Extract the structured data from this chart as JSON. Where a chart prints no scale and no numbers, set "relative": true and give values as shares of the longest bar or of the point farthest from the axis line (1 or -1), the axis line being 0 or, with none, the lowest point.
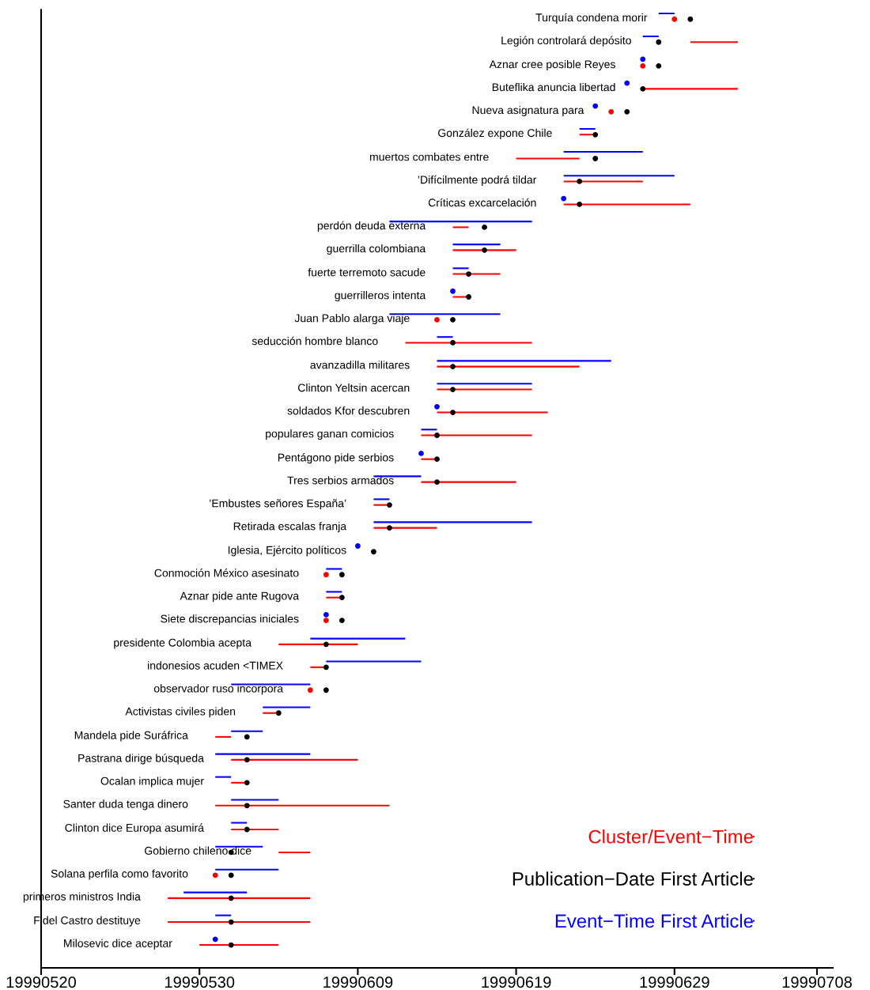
{
  "chart_data": {
    "type": "scatter",
    "relative": true,
    "xlim": [
      "1999-05-20",
      "1999-07-09"
    ],
    "xticks": [
      {
        "value": "1999-05-20",
        "label": "19990520"
      },
      {
        "value": "1999-05-30",
        "label": "19990530"
      },
      {
        "value": "1999-06-09",
        "label": "19990609"
      },
      {
        "value": "1999-06-19",
        "label": "19990619"
      },
      {
        "value": "1999-06-29",
        "label": "19990629"
      },
      {
        "value": "1999-07-08",
        "label": "19990708"
      }
    ],
    "legend": "bottom right",
    "line_style": "solid",
    "series": [
      {
        "name": "Cluster/Event−Time",
        "type": "line",
        "color": "#ff0000",
        "x": [
          "1999-06-30",
          "1999-07-03"
        ],
        "values": [
          0.97,
          0.97
        ]
      },
      {
        "name": "Publication−Date First Article",
        "color": "#000000",
        "marker": "circle",
        "x": [
          "1999-06-30",
          "1999-06-28",
          "1999-06-28",
          "1999-06-27",
          "1999-06-26",
          "1999-06-24",
          "1999-06-24",
          "1999-06-23",
          "1999-06-23",
          "1999-06-17",
          "1999-06-17",
          "1999-06-16",
          "1999-06-16",
          "1999-06-15",
          "1999-06-15",
          "1999-06-15",
          "1999-06-15",
          "1999-06-15",
          "1999-06-14",
          "1999-06-14",
          "1999-06-14",
          "1999-06-11",
          "1999-06-11",
          "1999-06-10",
          "1999-06-08",
          "1999-06-08",
          "1999-06-08",
          "1999-06-07",
          "1999-06-07",
          "1999-06-07",
          "1999-06-04",
          "1999-06-02",
          "1999-06-02",
          "1999-06-02",
          "1999-06-02",
          "1999-06-02",
          "1999-06-01",
          "1999-06-01",
          "1999-06-01",
          "1999-06-01",
          "1999-06-01"
        ],
        "values": [
          0.994,
          0.97,
          0.945,
          0.921,
          0.897,
          0.873,
          0.848,
          0.824,
          0.8,
          0.776,
          0.752,
          0.727,
          0.703,
          0.679,
          0.655,
          0.63,
          0.606,
          0.582,
          0.558,
          0.533,
          0.509,
          0.485,
          0.461,
          0.436,
          0.412,
          0.388,
          0.364,
          0.339,
          0.315,
          0.291,
          0.267,
          0.242,
          0.218,
          0.194,
          0.17,
          0.145,
          0.121,
          0.097,
          0.073,
          0.048,
          0.024
        ]
      },
      {
        "name": "Event−Time First Article",
        "type": "line",
        "color": "#0000ff",
        "x": [
          "1999-06-28",
          "1999-06-29"
        ],
        "values": [
          1,
          1
        ]
      },
      {
        "type": "line",
        "color": "#ff0000",
        "x": [
          "1999-06-27",
          "1999-07-03"
        ],
        "values": [
          0.921,
          0.921
        ]
      },
      {
        "type": "line",
        "color": "#ff0000",
        "x": [
          "1999-06-23",
          "1999-06-24"
        ],
        "values": [
          0.873,
          0.873
        ]
      },
      {
        "type": "line",
        "color": "#ff0000",
        "x": [
          "1999-06-19",
          "1999-06-23"
        ],
        "values": [
          0.848,
          0.848
        ]
      },
      {
        "type": "line",
        "color": "#ff0000",
        "x": [
          "1999-06-22",
          "1999-06-27"
        ],
        "values": [
          0.824,
          0.824
        ]
      },
      {
        "type": "line",
        "color": "#ff0000",
        "x": [
          "1999-06-22",
          "1999-06-30"
        ],
        "values": [
          0.8,
          0.8
        ]
      },
      {
        "type": "line",
        "color": "#ff0000",
        "x": [
          "1999-06-15",
          "1999-06-16"
        ],
        "values": [
          0.776,
          0.776
        ]
      },
      {
        "type": "line",
        "color": "#ff0000",
        "x": [
          "1999-06-15",
          "1999-06-19"
        ],
        "values": [
          0.752,
          0.752
        ]
      },
      {
        "type": "line",
        "color": "#ff0000",
        "x": [
          "1999-06-15",
          "1999-06-18"
        ],
        "values": [
          0.727,
          0.727
        ]
      },
      {
        "type": "line",
        "color": "#ff0000",
        "x": [
          "1999-06-15",
          "1999-06-16"
        ],
        "values": [
          0.703,
          0.703
        ]
      },
      {
        "type": "line",
        "color": "#ff0000",
        "x": [
          "1999-06-12",
          "1999-06-20"
        ],
        "values": [
          0.655,
          0.655
        ]
      },
      {
        "type": "line",
        "color": "#ff0000",
        "x": [
          "1999-06-14",
          "1999-06-23"
        ],
        "values": [
          0.63,
          0.63
        ]
      },
      {
        "type": "line",
        "color": "#ff0000",
        "x": [
          "1999-06-14",
          "1999-06-20"
        ],
        "values": [
          0.606,
          0.606
        ]
      },
      {
        "type": "line",
        "color": "#ff0000",
        "x": [
          "1999-06-14",
          "1999-06-21"
        ],
        "values": [
          0.582,
          0.582
        ]
      },
      {
        "type": "line",
        "color": "#ff0000",
        "x": [
          "1999-06-13",
          "1999-06-20"
        ],
        "values": [
          0.558,
          0.558
        ]
      },
      {
        "type": "line",
        "color": "#ff0000",
        "x": [
          "1999-06-13",
          "1999-06-14"
        ],
        "values": [
          0.533,
          0.533
        ]
      },
      {
        "type": "line",
        "color": "#ff0000",
        "x": [
          "1999-06-13",
          "1999-06-19"
        ],
        "values": [
          0.509,
          0.509
        ]
      },
      {
        "type": "line",
        "color": "#ff0000",
        "x": [
          "1999-06-10",
          "1999-06-11"
        ],
        "values": [
          0.485,
          0.485
        ]
      },
      {
        "type": "line",
        "color": "#ff0000",
        "x": [
          "1999-06-10",
          "1999-06-14"
        ],
        "values": [
          0.461,
          0.461
        ]
      },
      {
        "type": "line",
        "color": "#ff0000",
        "x": [
          "1999-06-07",
          "1999-06-08"
        ],
        "values": [
          0.388,
          0.388
        ]
      },
      {
        "type": "line",
        "color": "#ff0000",
        "x": [
          "1999-06-04",
          "1999-06-09"
        ],
        "values": [
          0.339,
          0.339
        ]
      },
      {
        "type": "line",
        "color": "#ff0000",
        "x": [
          "1999-06-06",
          "1999-06-07"
        ],
        "values": [
          0.315,
          0.315
        ]
      },
      {
        "type": "line",
        "color": "#ff0000",
        "x": [
          "1999-06-03",
          "1999-06-04"
        ],
        "values": [
          0.267,
          0.267
        ]
      },
      {
        "type": "line",
        "color": "#ff0000",
        "x": [
          "1999-05-31",
          "1999-06-01"
        ],
        "values": [
          0.242,
          0.242
        ]
      },
      {
        "type": "line",
        "color": "#ff0000",
        "x": [
          "1999-06-01",
          "1999-06-09"
        ],
        "values": [
          0.218,
          0.218
        ]
      },
      {
        "type": "line",
        "color": "#ff0000",
        "x": [
          "1999-06-01",
          "1999-06-02"
        ],
        "values": [
          0.194,
          0.194
        ]
      },
      {
        "type": "line",
        "color": "#ff0000",
        "x": [
          "1999-05-31",
          "1999-06-11"
        ],
        "values": [
          0.17,
          0.17
        ]
      },
      {
        "type": "line",
        "color": "#ff0000",
        "x": [
          "1999-06-01",
          "1999-06-04"
        ],
        "values": [
          0.145,
          0.145
        ]
      },
      {
        "type": "line",
        "color": "#ff0000",
        "x": [
          "1999-06-04",
          "1999-06-06"
        ],
        "values": [
          0.121,
          0.121
        ]
      },
      {
        "type": "line",
        "color": "#ff0000",
        "x": [
          "1999-05-28",
          "1999-06-06"
        ],
        "values": [
          0.073,
          0.073
        ]
      },
      {
        "type": "line",
        "color": "#ff0000",
        "x": [
          "1999-05-28",
          "1999-06-06"
        ],
        "values": [
          0.048,
          0.048
        ]
      },
      {
        "type": "line",
        "color": "#ff0000",
        "x": [
          "1999-05-30",
          "1999-06-04"
        ],
        "values": [
          0.024,
          0.024
        ]
      },
      {
        "type": "line",
        "color": "#0000ff",
        "x": [
          "1999-06-27",
          "1999-06-28"
        ],
        "values": [
          0.976,
          0.976
        ]
      },
      {
        "type": "line",
        "color": "#0000ff",
        "x": [
          "1999-06-23",
          "1999-06-24"
        ],
        "values": [
          0.879,
          0.879
        ]
      },
      {
        "type": "line",
        "color": "#0000ff",
        "x": [
          "1999-06-22",
          "1999-06-27"
        ],
        "values": [
          0.855,
          0.855
        ]
      },
      {
        "type": "line",
        "color": "#0000ff",
        "x": [
          "1999-06-22",
          "1999-06-29"
        ],
        "values": [
          0.83,
          0.83
        ]
      },
      {
        "type": "line",
        "color": "#0000ff",
        "x": [
          "1999-06-11",
          "1999-06-20"
        ],
        "values": [
          0.782,
          0.782
        ]
      },
      {
        "type": "line",
        "color": "#0000ff",
        "x": [
          "1999-06-15",
          "1999-06-18"
        ],
        "values": [
          0.758,
          0.758
        ]
      },
      {
        "type": "line",
        "color": "#0000ff",
        "x": [
          "1999-06-15",
          "1999-06-16"
        ],
        "values": [
          0.733,
          0.733
        ]
      },
      {
        "type": "line",
        "color": "#0000ff",
        "x": [
          "1999-06-11",
          "1999-06-18"
        ],
        "values": [
          0.685,
          0.685
        ]
      },
      {
        "type": "line",
        "color": "#0000ff",
        "x": [
          "1999-06-14",
          "1999-06-15"
        ],
        "values": [
          0.661,
          0.661
        ]
      },
      {
        "type": "line",
        "color": "#0000ff",
        "x": [
          "1999-06-14",
          "1999-06-25"
        ],
        "values": [
          0.636,
          0.636
        ]
      },
      {
        "type": "line",
        "color": "#0000ff",
        "x": [
          "1999-06-14",
          "1999-06-20"
        ],
        "values": [
          0.612,
          0.612
        ]
      },
      {
        "type": "line",
        "color": "#0000ff",
        "x": [
          "1999-06-13",
          "1999-06-14"
        ],
        "values": [
          0.564,
          0.564
        ]
      },
      {
        "type": "line",
        "color": "#0000ff",
        "x": [
          "1999-06-10",
          "1999-06-13"
        ],
        "values": [
          0.515,
          0.515
        ]
      },
      {
        "type": "line",
        "color": "#0000ff",
        "x": [
          "1999-06-10",
          "1999-06-11"
        ],
        "values": [
          0.491,
          0.491
        ]
      },
      {
        "type": "line",
        "color": "#0000ff",
        "x": [
          "1999-06-10",
          "1999-06-20"
        ],
        "values": [
          0.467,
          0.467
        ]
      },
      {
        "type": "line",
        "color": "#0000ff",
        "x": [
          "1999-06-07",
          "1999-06-08"
        ],
        "values": [
          0.418,
          0.418
        ]
      },
      {
        "type": "line",
        "color": "#0000ff",
        "x": [
          "1999-06-07",
          "1999-06-08"
        ],
        "values": [
          0.394,
          0.394
        ]
      },
      {
        "type": "line",
        "color": "#0000ff",
        "x": [
          "1999-06-06",
          "1999-06-12"
        ],
        "values": [
          0.345,
          0.345
        ]
      },
      {
        "type": "line",
        "color": "#0000ff",
        "x": [
          "1999-06-07",
          "1999-06-13"
        ],
        "values": [
          0.321,
          0.321
        ]
      },
      {
        "type": "line",
        "color": "#0000ff",
        "x": [
          "1999-06-01",
          "1999-06-06"
        ],
        "values": [
          0.297,
          0.297
        ]
      },
      {
        "type": "line",
        "color": "#0000ff",
        "x": [
          "1999-06-03",
          "1999-06-06"
        ],
        "values": [
          0.273,
          0.273
        ]
      },
      {
        "type": "line",
        "color": "#0000ff",
        "x": [
          "1999-06-01",
          "1999-06-03"
        ],
        "values": [
          0.248,
          0.248
        ]
      },
      {
        "type": "line",
        "color": "#0000ff",
        "x": [
          "1999-05-31",
          "1999-06-06"
        ],
        "values": [
          0.224,
          0.224
        ]
      },
      {
        "type": "line",
        "color": "#0000ff",
        "x": [
          "1999-05-31",
          "1999-06-01"
        ],
        "values": [
          0.2,
          0.2
        ]
      },
      {
        "type": "line",
        "color": "#0000ff",
        "x": [
          "1999-06-01",
          "1999-06-04"
        ],
        "values": [
          0.176,
          0.176
        ]
      },
      {
        "type": "line",
        "color": "#0000ff",
        "x": [
          "1999-06-01",
          "1999-06-02"
        ],
        "values": [
          0.152,
          0.152
        ]
      },
      {
        "type": "line",
        "color": "#0000ff",
        "x": [
          "1999-05-31",
          "1999-06-03"
        ],
        "values": [
          0.127,
          0.127
        ]
      },
      {
        "type": "line",
        "color": "#0000ff",
        "x": [
          "1999-05-31",
          "1999-06-04"
        ],
        "values": [
          0.103,
          0.103
        ]
      },
      {
        "type": "line",
        "color": "#0000ff",
        "x": [
          "1999-05-29",
          "1999-06-02"
        ],
        "values": [
          0.079,
          0.079
        ]
      },
      {
        "type": "line",
        "color": "#0000ff",
        "x": [
          "1999-05-31",
          "1999-06-01"
        ],
        "values": [
          0.055,
          0.055
        ]
      },
      {
        "color": "#ff0000",
        "marker": "circle",
        "x": [
          "1999-06-29",
          "1999-06-27",
          "1999-06-25",
          "1999-06-14",
          "1999-06-07",
          "1999-06-07",
          "1999-06-06",
          "1999-05-31"
        ],
        "values": [
          0.994,
          0.945,
          0.897,
          0.679,
          0.412,
          0.364,
          0.291,
          0.097
        ]
      },
      {
        "color": "#0000ff",
        "marker": "circle",
        "x": [
          "1999-06-27",
          "1999-06-26",
          "1999-06-24",
          "1999-06-22",
          "1999-06-15",
          "1999-06-14",
          "1999-06-13",
          "1999-06-09",
          "1999-06-07",
          "1999-05-31"
        ],
        "values": [
          0.952,
          0.927,
          0.903,
          0.806,
          0.709,
          0.588,
          0.539,
          0.442,
          0.37,
          0.03
        ]
      }
    ],
    "annotations": [
      {
        "text": "Turquía condena morir",
        "x": "1999-06-29",
        "y": 0.994
      },
      {
        "text": "Legión controlará depósito",
        "x": "1999-06-28",
        "y": 0.97
      },
      {
        "text": "Aznar cree posible Reyes",
        "x": "1999-06-27",
        "y": 0.945
      },
      {
        "text": "Buteflika anuncia libertad",
        "x": "1999-06-27",
        "y": 0.921
      },
      {
        "text": "Nueva asignatura para",
        "x": "1999-06-25",
        "y": 0.897
      },
      {
        "text": "González expone Chile",
        "x": "1999-06-23",
        "y": 0.873
      },
      {
        "text": "muertos combates entre",
        "x": "1999-06-19",
        "y": 0.848
      },
      {
        "text": "’Difícilmente podrá tildar",
        "x": "1999-06-22",
        "y": 0.824
      },
      {
        "text": "Críticas excarcelación",
        "x": "1999-06-22",
        "y": 0.8
      },
      {
        "text": "perdón deuda externa",
        "x": "1999-06-15",
        "y": 0.776
      },
      {
        "text": "guerrilla colombiana",
        "x": "1999-06-15",
        "y": 0.752
      },
      {
        "text": "fuerte terremoto sacude",
        "x": "1999-06-15",
        "y": 0.727
      },
      {
        "text": "guerrilleros intenta",
        "x": "1999-06-15",
        "y": 0.703
      },
      {
        "text": "Juan Pablo alarga viaje",
        "x": "1999-06-14",
        "y": 0.679
      },
      {
        "text": "seducción hombre blanco",
        "x": "1999-06-12",
        "y": 0.655
      },
      {
        "text": "avanzadilla militares",
        "x": "1999-06-14",
        "y": 0.63
      },
      {
        "text": "Clinton Yeltsin acercan",
        "x": "1999-06-14",
        "y": 0.606
      },
      {
        "text": "soldados Kfor descubren",
        "x": "1999-06-14",
        "y": 0.582
      },
      {
        "text": "populares ganan comicios",
        "x": "1999-06-13",
        "y": 0.558
      },
      {
        "text": "Pentágono pide serbios",
        "x": "1999-06-13",
        "y": 0.533
      },
      {
        "text": "Tres serbios armados",
        "x": "1999-06-13",
        "y": 0.509
      },
      {
        "text": "’Embustes señores España’",
        "x": "1999-06-10",
        "y": 0.485
      },
      {
        "text": "Retirada escalas franja",
        "x": "1999-06-10",
        "y": 0.461
      },
      {
        "text": "Iglesia, Ejército políticos",
        "x": "1999-06-10",
        "y": 0.436
      },
      {
        "text": "Conmoción México asesinato",
        "x": "1999-06-07",
        "y": 0.412
      },
      {
        "text": "Aznar pide ante Rugova",
        "x": "1999-06-07",
        "y": 0.388
      },
      {
        "text": "Siete discrepancias iniciales",
        "x": "1999-06-07",
        "y": 0.364
      },
      {
        "text": "presidente Colombia acepta",
        "x": "1999-06-04",
        "y": 0.339
      },
      {
        "text": "indonesios acuden <TIMEX",
        "x": "1999-06-06",
        "y": 0.315
      },
      {
        "text": "observador ruso incorpora",
        "x": "1999-06-06",
        "y": 0.291
      },
      {
        "text": "Activistas civiles piden",
        "x": "1999-06-03",
        "y": 0.267
      },
      {
        "text": "Mandela pide Suráfrica",
        "x": "1999-05-31",
        "y": 0.242
      },
      {
        "text": "Pastrana dirige búsqueda",
        "x": "1999-06-01",
        "y": 0.218
      },
      {
        "text": "Ocalan implica mujer",
        "x": "1999-06-01",
        "y": 0.194
      },
      {
        "text": "Santer duda tenga dinero",
        "x": "1999-05-31",
        "y": 0.17
      },
      {
        "text": "Clinton dice Europa asumirá",
        "x": "1999-06-01",
        "y": 0.145
      },
      {
        "text": "Gobierno chileno dice",
        "x": "1999-06-04",
        "y": 0.121
      },
      {
        "text": "Solana perfila como favorito",
        "x": "1999-05-31",
        "y": 0.097
      },
      {
        "text": "primeros ministros India",
        "x": "1999-05-28",
        "y": 0.073
      },
      {
        "text": "Fidel Castro destituye",
        "x": "1999-05-28",
        "y": 0.048
      },
      {
        "text": "Milosevic dice aceptar",
        "x": "1999-05-30",
        "y": 0.024
      }
    ]
  }
}
